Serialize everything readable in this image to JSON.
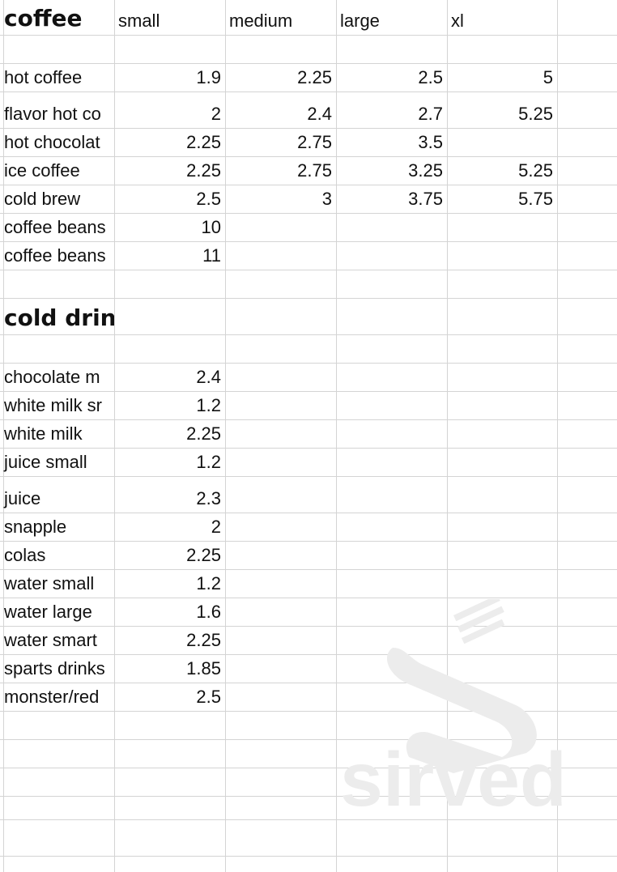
{
  "coffee": {
    "title": "coffee",
    "headers": [
      "small",
      "medium",
      "large",
      "xl"
    ],
    "rows": [
      {
        "name": "hot coffee",
        "prices": [
          "1.9",
          "2.25",
          "2.5",
          "5"
        ]
      },
      {
        "name": "flavor hot co",
        "prices": [
          "2",
          "2.4",
          "2.7",
          "5.25"
        ]
      },
      {
        "name": "hot chocolat",
        "prices": [
          "2.25",
          "2.75",
          "3.5",
          ""
        ]
      },
      {
        "name": "ice coffee",
        "prices": [
          "2.25",
          "2.75",
          "3.25",
          "5.25"
        ]
      },
      {
        "name": "cold brew",
        "prices": [
          "2.5",
          "3",
          "3.75",
          "5.75"
        ]
      },
      {
        "name": "coffee beans",
        "prices": [
          "10",
          "",
          "",
          ""
        ]
      },
      {
        "name": "coffee beans",
        "prices": [
          "11",
          "",
          "",
          ""
        ]
      }
    ]
  },
  "cold_drinks": {
    "title": "cold drinks",
    "rows": [
      {
        "name": "chocolate m",
        "price": "2.4"
      },
      {
        "name": "white milk sr",
        "price": "1.2"
      },
      {
        "name": "white milk",
        "price": "2.25"
      },
      {
        "name": "juice small",
        "price": "1.2"
      },
      {
        "name": "juice",
        "price": "2.3"
      },
      {
        "name": "snapple",
        "price": "2"
      },
      {
        "name": "colas",
        "price": "2.25"
      },
      {
        "name": "water small",
        "price": "1.2"
      },
      {
        "name": "water large",
        "price": "1.6"
      },
      {
        "name": "water smart",
        "price": "2.25"
      },
      {
        "name": "sparts drinks",
        "price": "1.85"
      },
      {
        "name": "monster/red",
        "price": "2.5"
      }
    ]
  },
  "watermark": {
    "text": "sirved",
    "icon": "fork-spoon-icon"
  }
}
